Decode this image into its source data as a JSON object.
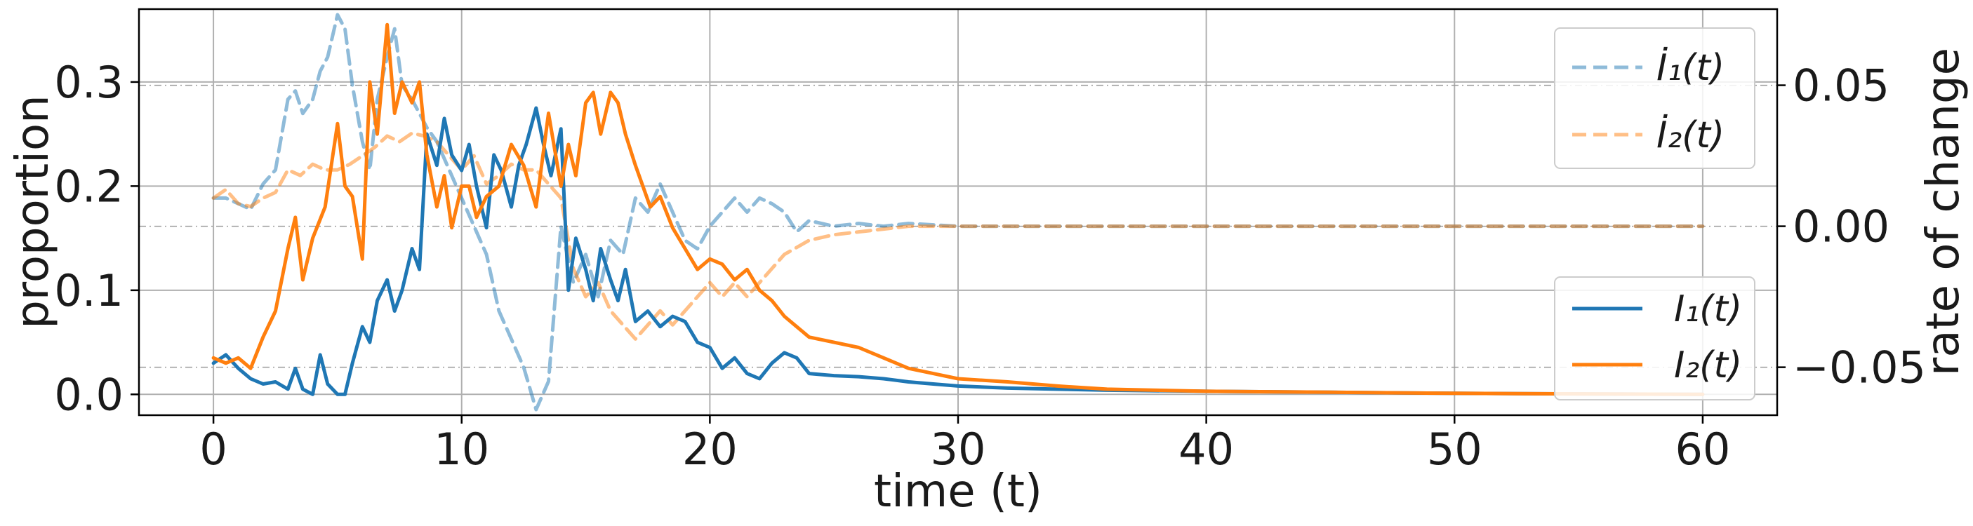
{
  "chart_data": {
    "type": "line",
    "xlabel": "time (t)",
    "ylabel_left": "proportion",
    "ylabel_right": "rate of change",
    "xlim": [
      -3,
      63
    ],
    "ylim_left": [
      -0.02,
      0.37
    ],
    "ylim_right": [
      -0.067,
      0.077
    ],
    "x_ticks": [
      0,
      10,
      20,
      30,
      40,
      50,
      60
    ],
    "x_tick_labels": [
      "0",
      "10",
      "20",
      "30",
      "40",
      "50",
      "60"
    ],
    "y_left_ticks": [
      0.0,
      0.1,
      0.2,
      0.3
    ],
    "y_left_tick_labels": [
      "0.0",
      "0.1",
      "0.2",
      "0.3"
    ],
    "y_right_ticks": [
      -0.05,
      0.0,
      0.05
    ],
    "y_right_tick_labels": [
      "−0.05",
      "0.00",
      "0.05"
    ],
    "grid": true,
    "legend_top_right": {
      "placement": "top-right",
      "entries": [
        {
          "label": "İ₁(t)",
          "series": "dI1"
        },
        {
          "label": "İ₂(t)",
          "series": "dI2"
        }
      ]
    },
    "legend_bottom_right": {
      "placement": "lower-right",
      "entries": [
        {
          "label": "I₁(t)",
          "series": "I1"
        },
        {
          "label": "I₂(t)",
          "series": "I2"
        }
      ]
    },
    "series": [
      {
        "key": "I1",
        "axis": "left",
        "color": "#1f77b4",
        "style": "solid",
        "x": [
          0,
          0.5,
          1,
          1.5,
          2,
          2.5,
          3,
          3.3,
          3.6,
          4,
          4.3,
          4.6,
          5,
          5.3,
          5.6,
          6,
          6.3,
          6.6,
          7,
          7.3,
          7.6,
          8,
          8.3,
          8.6,
          9,
          9.3,
          9.6,
          10,
          10.3,
          10.6,
          11,
          11.3,
          11.6,
          12,
          12.3,
          12.6,
          13,
          13.3,
          13.6,
          14,
          14.3,
          14.6,
          15,
          15.3,
          15.6,
          16,
          16.3,
          16.6,
          17,
          17.5,
          18,
          18.5,
          19,
          19.5,
          20,
          20.5,
          21,
          21.5,
          22,
          22.5,
          23,
          23.5,
          24,
          25,
          26,
          27,
          28,
          29,
          30,
          32,
          34,
          36,
          40,
          45,
          50,
          55,
          60
        ],
        "values": [
          0.03,
          0.038,
          0.025,
          0.015,
          0.01,
          0.012,
          0.005,
          0.025,
          0.005,
          0.0,
          0.038,
          0.01,
          0.0,
          0.0,
          0.03,
          0.065,
          0.05,
          0.09,
          0.11,
          0.08,
          0.1,
          0.14,
          0.12,
          0.25,
          0.22,
          0.265,
          0.23,
          0.215,
          0.24,
          0.2,
          0.16,
          0.23,
          0.215,
          0.18,
          0.22,
          0.24,
          0.275,
          0.24,
          0.21,
          0.255,
          0.1,
          0.15,
          0.12,
          0.09,
          0.14,
          0.11,
          0.09,
          0.12,
          0.07,
          0.08,
          0.065,
          0.075,
          0.07,
          0.05,
          0.045,
          0.025,
          0.035,
          0.02,
          0.015,
          0.03,
          0.04,
          0.035,
          0.02,
          0.018,
          0.017,
          0.015,
          0.012,
          0.01,
          0.008,
          0.006,
          0.005,
          0.004,
          0.003,
          0.002,
          0.001,
          0.0005,
          0.0
        ]
      },
      {
        "key": "I2",
        "axis": "left",
        "color": "#ff7f0e",
        "style": "solid",
        "x": [
          0,
          0.5,
          1,
          1.5,
          2,
          2.5,
          3,
          3.3,
          3.6,
          4,
          4.5,
          5,
          5.3,
          5.6,
          6,
          6.3,
          6.6,
          7,
          7.3,
          7.6,
          8,
          8.3,
          8.6,
          9,
          9.3,
          9.6,
          10,
          10.3,
          10.6,
          11,
          11.5,
          12,
          12.5,
          13,
          13.5,
          14,
          14.3,
          14.6,
          15,
          15.3,
          15.6,
          16,
          16.3,
          16.6,
          17,
          17.3,
          17.6,
          18,
          18.5,
          19,
          19.5,
          20,
          20.5,
          21,
          21.5,
          22,
          22.5,
          23,
          23.5,
          24,
          25,
          26,
          27,
          28,
          29,
          30,
          32,
          34,
          36,
          40,
          45,
          50,
          55,
          60
        ],
        "values": [
          0.035,
          0.03,
          0.035,
          0.025,
          0.055,
          0.08,
          0.14,
          0.17,
          0.11,
          0.15,
          0.18,
          0.26,
          0.2,
          0.19,
          0.13,
          0.3,
          0.25,
          0.355,
          0.27,
          0.3,
          0.28,
          0.3,
          0.23,
          0.18,
          0.21,
          0.16,
          0.2,
          0.2,
          0.17,
          0.19,
          0.2,
          0.24,
          0.22,
          0.18,
          0.27,
          0.2,
          0.24,
          0.21,
          0.28,
          0.29,
          0.25,
          0.29,
          0.28,
          0.25,
          0.22,
          0.2,
          0.18,
          0.19,
          0.16,
          0.14,
          0.12,
          0.13,
          0.125,
          0.11,
          0.12,
          0.1,
          0.09,
          0.075,
          0.065,
          0.055,
          0.05,
          0.045,
          0.035,
          0.025,
          0.02,
          0.015,
          0.012,
          0.008,
          0.005,
          0.003,
          0.002,
          0.001,
          0.0005,
          0.0
        ]
      },
      {
        "key": "dI1",
        "axis": "right",
        "color": "#1f77b4",
        "style": "dashed",
        "alpha": 0.5,
        "x": [
          0,
          0.5,
          1,
          1.5,
          2,
          2.5,
          3,
          3.3,
          3.6,
          4,
          4.3,
          4.6,
          5,
          5.3,
          5.6,
          6,
          6.3,
          6.6,
          7,
          7.3,
          7.6,
          8,
          8.3,
          8.6,
          9,
          9.5,
          10,
          10.5,
          11,
          11.5,
          12,
          12.5,
          13,
          13.5,
          14,
          14.5,
          15,
          15.5,
          16,
          16.5,
          17,
          17.5,
          18,
          18.5,
          19,
          19.5,
          20,
          20.5,
          21,
          21.5,
          22,
          22.5,
          23,
          23.5,
          24,
          25,
          26,
          27,
          28,
          30,
          35,
          40,
          50,
          60
        ],
        "values": [
          0.01,
          0.01,
          0.008,
          0.006,
          0.015,
          0.02,
          0.045,
          0.048,
          0.04,
          0.045,
          0.055,
          0.06,
          0.075,
          0.07,
          0.05,
          0.03,
          0.02,
          0.045,
          0.06,
          0.07,
          0.05,
          0.045,
          0.04,
          0.035,
          0.03,
          0.02,
          0.01,
          0.0,
          -0.01,
          -0.03,
          -0.04,
          -0.05,
          -0.065,
          -0.055,
          0.0,
          -0.02,
          -0.01,
          -0.025,
          -0.005,
          -0.01,
          0.01,
          0.005,
          0.015,
          0.005,
          -0.005,
          -0.008,
          0.0,
          0.005,
          0.01,
          0.005,
          0.01,
          0.008,
          0.005,
          -0.002,
          0.002,
          0.0,
          0.001,
          0.0,
          0.001,
          0.0,
          0.0,
          0.0,
          0.0,
          0.0
        ]
      },
      {
        "key": "dI2",
        "axis": "right",
        "color": "#ff7f0e",
        "style": "dashed",
        "alpha": 0.5,
        "x": [
          0,
          0.5,
          1,
          1.5,
          2,
          2.5,
          3,
          3.5,
          4,
          4.5,
          5,
          5.5,
          6,
          6.5,
          7,
          7.5,
          8,
          8.5,
          9,
          9.5,
          10,
          10.5,
          11,
          11.5,
          12,
          12.5,
          13,
          13.5,
          14,
          14.5,
          15,
          15.5,
          16,
          16.5,
          17,
          17.5,
          18,
          18.5,
          19,
          19.5,
          20,
          20.5,
          21,
          21.5,
          22,
          22.5,
          23,
          24,
          25,
          26,
          27,
          28,
          30,
          35,
          40,
          50,
          60
        ],
        "values": [
          0.01,
          0.013,
          0.008,
          0.007,
          0.01,
          0.012,
          0.02,
          0.018,
          0.022,
          0.02,
          0.02,
          0.022,
          0.025,
          0.028,
          0.032,
          0.03,
          0.033,
          0.032,
          0.03,
          0.025,
          0.02,
          0.025,
          0.015,
          0.018,
          0.022,
          0.02,
          0.02,
          0.015,
          0.01,
          -0.015,
          -0.025,
          -0.02,
          -0.03,
          -0.035,
          -0.04,
          -0.035,
          -0.03,
          -0.035,
          -0.03,
          -0.025,
          -0.02,
          -0.025,
          -0.02,
          -0.025,
          -0.02,
          -0.015,
          -0.01,
          -0.005,
          -0.003,
          -0.002,
          -0.001,
          0.0,
          0.0,
          0.0,
          0.0,
          0.0,
          0.0
        ]
      }
    ]
  }
}
